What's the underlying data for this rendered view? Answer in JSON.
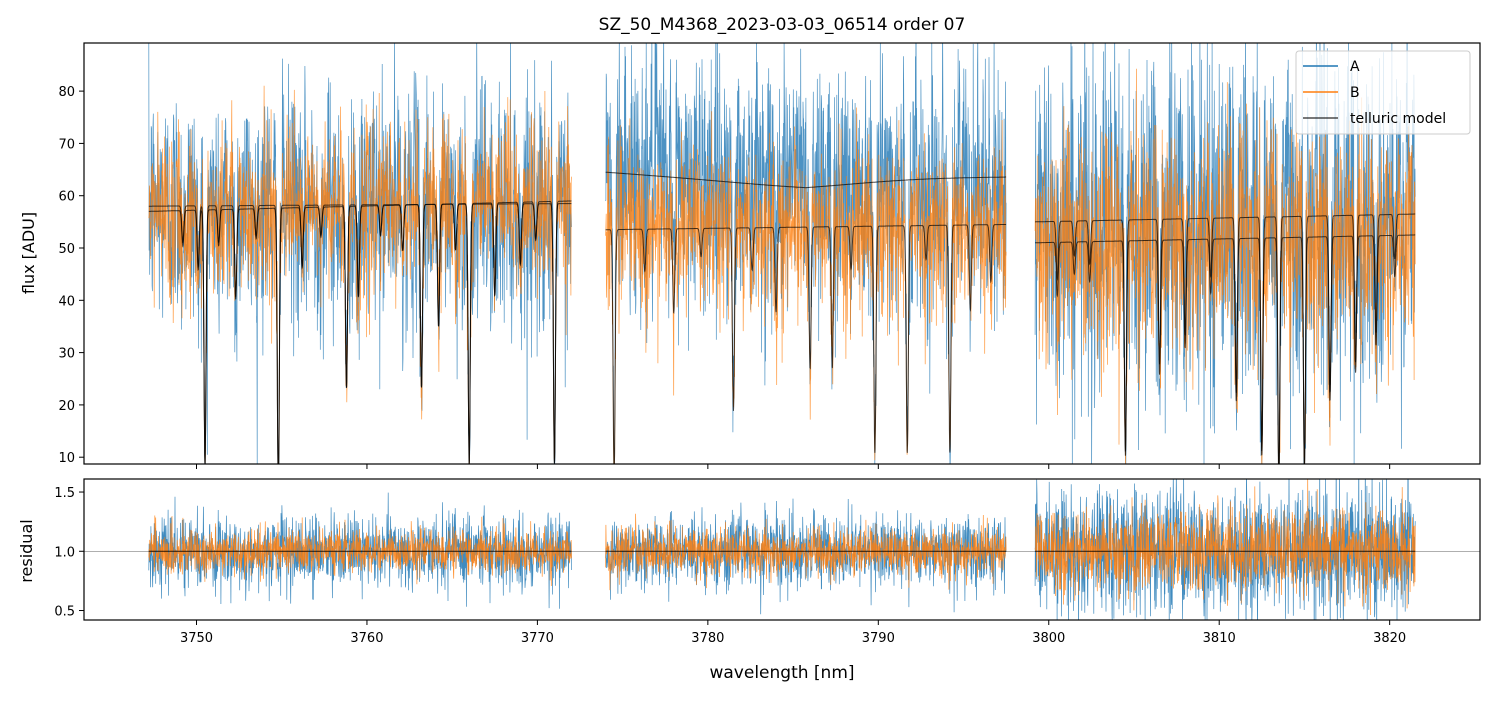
{
  "chart_data": [
    {
      "type": "line",
      "title": "SZ_50_M4368_2023-03-03_06514  order 07",
      "xlabel": "",
      "ylabel": "flux [ADU]",
      "xlim": [
        3743.4,
        3825.3
      ],
      "ylim": [
        8.7,
        89.2
      ],
      "xticks": [
        3750,
        3760,
        3770,
        3780,
        3790,
        3800,
        3810,
        3820
      ],
      "yticks": [
        "10",
        "20",
        "30",
        "40",
        "50",
        "60",
        "70",
        "80"
      ],
      "legend": {
        "placement": "top-right",
        "entries": [
          "A",
          "B",
          "telluric model"
        ]
      },
      "segments": [
        [
          3747.2,
          3772.0
        ],
        [
          3774.0,
          3797.5
        ],
        [
          3799.2,
          3821.5
        ]
      ],
      "series": [
        {
          "name": "A",
          "color": "#1f77b4",
          "continuum": [
            [
              58,
              58.5
            ],
            [
              64.5,
              61.5
            ],
            [
              55,
              56.5
            ]
          ],
          "noise_frac": 0.2
        },
        {
          "name": "B",
          "color": "#ff7f0e",
          "continuum": [
            [
              57,
              59
            ],
            [
              53.5,
              54.5
            ],
            [
              51,
              52.5
            ]
          ],
          "noise_frac": 0.14
        },
        {
          "name": "telluric model",
          "color": "#000000"
        }
      ],
      "telluric_lines": [
        [
          3749.2,
          0.12
        ],
        [
          3750.1,
          0.2
        ],
        [
          3750.5,
          0.85
        ],
        [
          3751.3,
          0.12
        ],
        [
          3752.3,
          0.3
        ],
        [
          3753.5,
          0.1
        ],
        [
          3754.8,
          0.92
        ],
        [
          3756.2,
          0.2
        ],
        [
          3757.3,
          0.1
        ],
        [
          3758.8,
          0.6
        ],
        [
          3759.5,
          0.3
        ],
        [
          3760.8,
          0.1
        ],
        [
          3762.1,
          0.15
        ],
        [
          3763.2,
          0.6
        ],
        [
          3764.2,
          0.4
        ],
        [
          3765.2,
          0.15
        ],
        [
          3766.0,
          0.85
        ],
        [
          3767.5,
          0.3
        ],
        [
          3769.0,
          0.2
        ],
        [
          3769.9,
          0.12
        ],
        [
          3771.0,
          0.85
        ],
        [
          3774.5,
          0.88
        ],
        [
          3776.3,
          0.15
        ],
        [
          3778.0,
          0.3
        ],
        [
          3779.6,
          0.1
        ],
        [
          3781.5,
          0.65
        ],
        [
          3782.6,
          0.15
        ],
        [
          3784.0,
          0.3
        ],
        [
          3786.0,
          0.5
        ],
        [
          3787.3,
          0.5
        ],
        [
          3788.4,
          0.15
        ],
        [
          3789.8,
          0.8
        ],
        [
          3791.7,
          0.8
        ],
        [
          3792.8,
          0.12
        ],
        [
          3794.2,
          0.8
        ],
        [
          3795.4,
          0.3
        ],
        [
          3796.6,
          0.2
        ],
        [
          3800.5,
          0.2
        ],
        [
          3801.5,
          0.12
        ],
        [
          3802.4,
          0.15
        ],
        [
          3804.5,
          0.8
        ],
        [
          3806.5,
          0.5
        ],
        [
          3808.0,
          0.4
        ],
        [
          3809.5,
          0.2
        ],
        [
          3811.0,
          0.6
        ],
        [
          3812.5,
          0.8
        ],
        [
          3813.5,
          0.9
        ],
        [
          3815.0,
          0.85
        ],
        [
          3816.5,
          0.6
        ],
        [
          3818.0,
          0.5
        ],
        [
          3819.2,
          0.4
        ],
        [
          3820.3,
          0.15
        ]
      ]
    },
    {
      "type": "line",
      "xlabel": "wavelength [nm]",
      "ylabel": "residual",
      "xlim": [
        3743.4,
        3825.3
      ],
      "ylim": [
        0.42,
        1.61
      ],
      "xticks": [
        "3750",
        "3760",
        "3770",
        "3780",
        "3790",
        "3800",
        "3810",
        "3820"
      ],
      "yticks": [
        "0.5",
        "1.0",
        "1.5"
      ],
      "reference_line": 1.0,
      "series": [
        {
          "name": "A",
          "color": "#1f77b4",
          "noise_std": [
            0.15,
            0.15,
            0.28
          ]
        },
        {
          "name": "B",
          "color": "#ff7f0e",
          "noise_std": [
            0.09,
            0.1,
            0.17
          ]
        }
      ]
    }
  ]
}
